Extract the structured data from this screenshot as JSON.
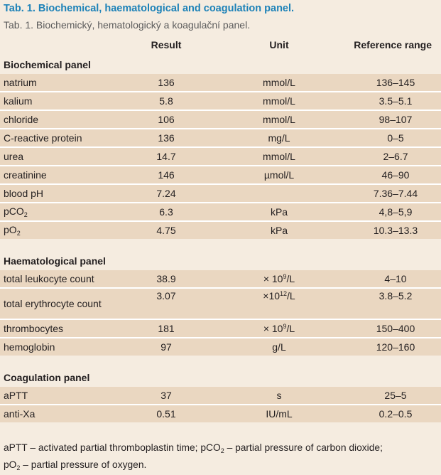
{
  "title_en": "Tab. 1. Biochemical, haematological and coagulation panel.",
  "title_cz": "Tab. 1. Biochemický, hematologický a koagulační panel.",
  "headers": {
    "result": "Result",
    "unit": "Unit",
    "reference": "Reference range"
  },
  "sections": {
    "biochemical": "Biochemical panel",
    "haematological": "Haematological panel",
    "coagulation": "Coagulation panel"
  },
  "biochemical_rows": [
    {
      "name": "natrium",
      "result": "136",
      "unit": "mmol/L",
      "ref": "136–145"
    },
    {
      "name": "kalium",
      "result": "5.8",
      "unit": "mmol/L",
      "ref": "3.5–5.1"
    },
    {
      "name": "chloride",
      "result": "106",
      "unit": "mmol/L",
      "ref": "98–107"
    },
    {
      "name": "C-reactive protein",
      "result": "136",
      "unit": "mg/L",
      "ref": "0–5"
    },
    {
      "name": "urea",
      "result": "14.7",
      "unit": "mmol/L",
      "ref": "2–6.7"
    },
    {
      "name": "creatinine",
      "result": "146",
      "unit": "µmol/L",
      "ref": "46–90"
    },
    {
      "name": "blood pH",
      "result": "7.24",
      "unit": "",
      "ref": "7.36–7.44"
    },
    {
      "name_main": "pCO",
      "name_sub": "2",
      "result": "6.3",
      "unit": "kPa",
      "ref": "4,8–5,9"
    },
    {
      "name_main": "pO",
      "name_sub": "2",
      "result": "4.75",
      "unit": "kPa",
      "ref": "10.3–13.3"
    }
  ],
  "haematological_rows": [
    {
      "name": "total leukocyte count",
      "result": "38.9",
      "unit_pre": "× 10",
      "unit_sup": "9",
      "unit_post": "/L",
      "ref": "4–10"
    },
    {
      "name": "total erythrocyte count",
      "result": "3.07",
      "unit_pre": "×10",
      "unit_sup": "12",
      "unit_post": "/L",
      "ref": "3.8–5.2"
    },
    {
      "name": "thrombocytes",
      "result": "181",
      "unit_pre": "× 10",
      "unit_sup": "9",
      "unit_post": "/L",
      "ref": "150–400"
    },
    {
      "name": "hemoglobin",
      "result": "97",
      "unit": "g/L",
      "ref": "120–160"
    }
  ],
  "coagulation_rows": [
    {
      "name": "aPTT",
      "result": "37",
      "unit": "s",
      "ref": "25–5"
    },
    {
      "name": "anti-Xa",
      "result": "0.51",
      "unit": "IU/mL",
      "ref": "0.2–0.5"
    }
  ],
  "footnote": {
    "part1": "aPTT – activated partial thromboplastin time; pCO",
    "sub1": "2",
    "part2": " – partial pressure of carbon dioxide;",
    "part3": "pO",
    "sub2": "2",
    "part4": " – partial pressure of oxygen."
  }
}
